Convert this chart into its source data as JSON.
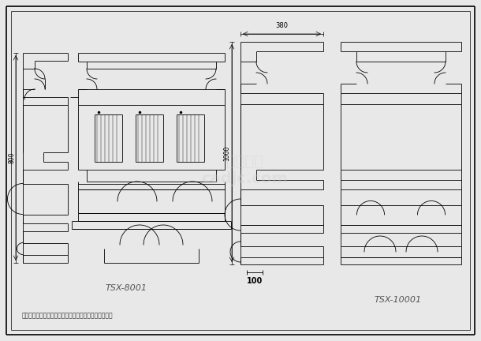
{
  "bg_color": "#e8e8e8",
  "line_color": "#000000",
  "title_label1": "TSX-8001",
  "title_label2": "TSX-10001",
  "note_text": "说明：可根据客户的要求定作各种各样形状尺寸的腰型。",
  "dim_380": "380",
  "dim_1000": "1000",
  "dim_800": "800",
  "dim_100": "100"
}
